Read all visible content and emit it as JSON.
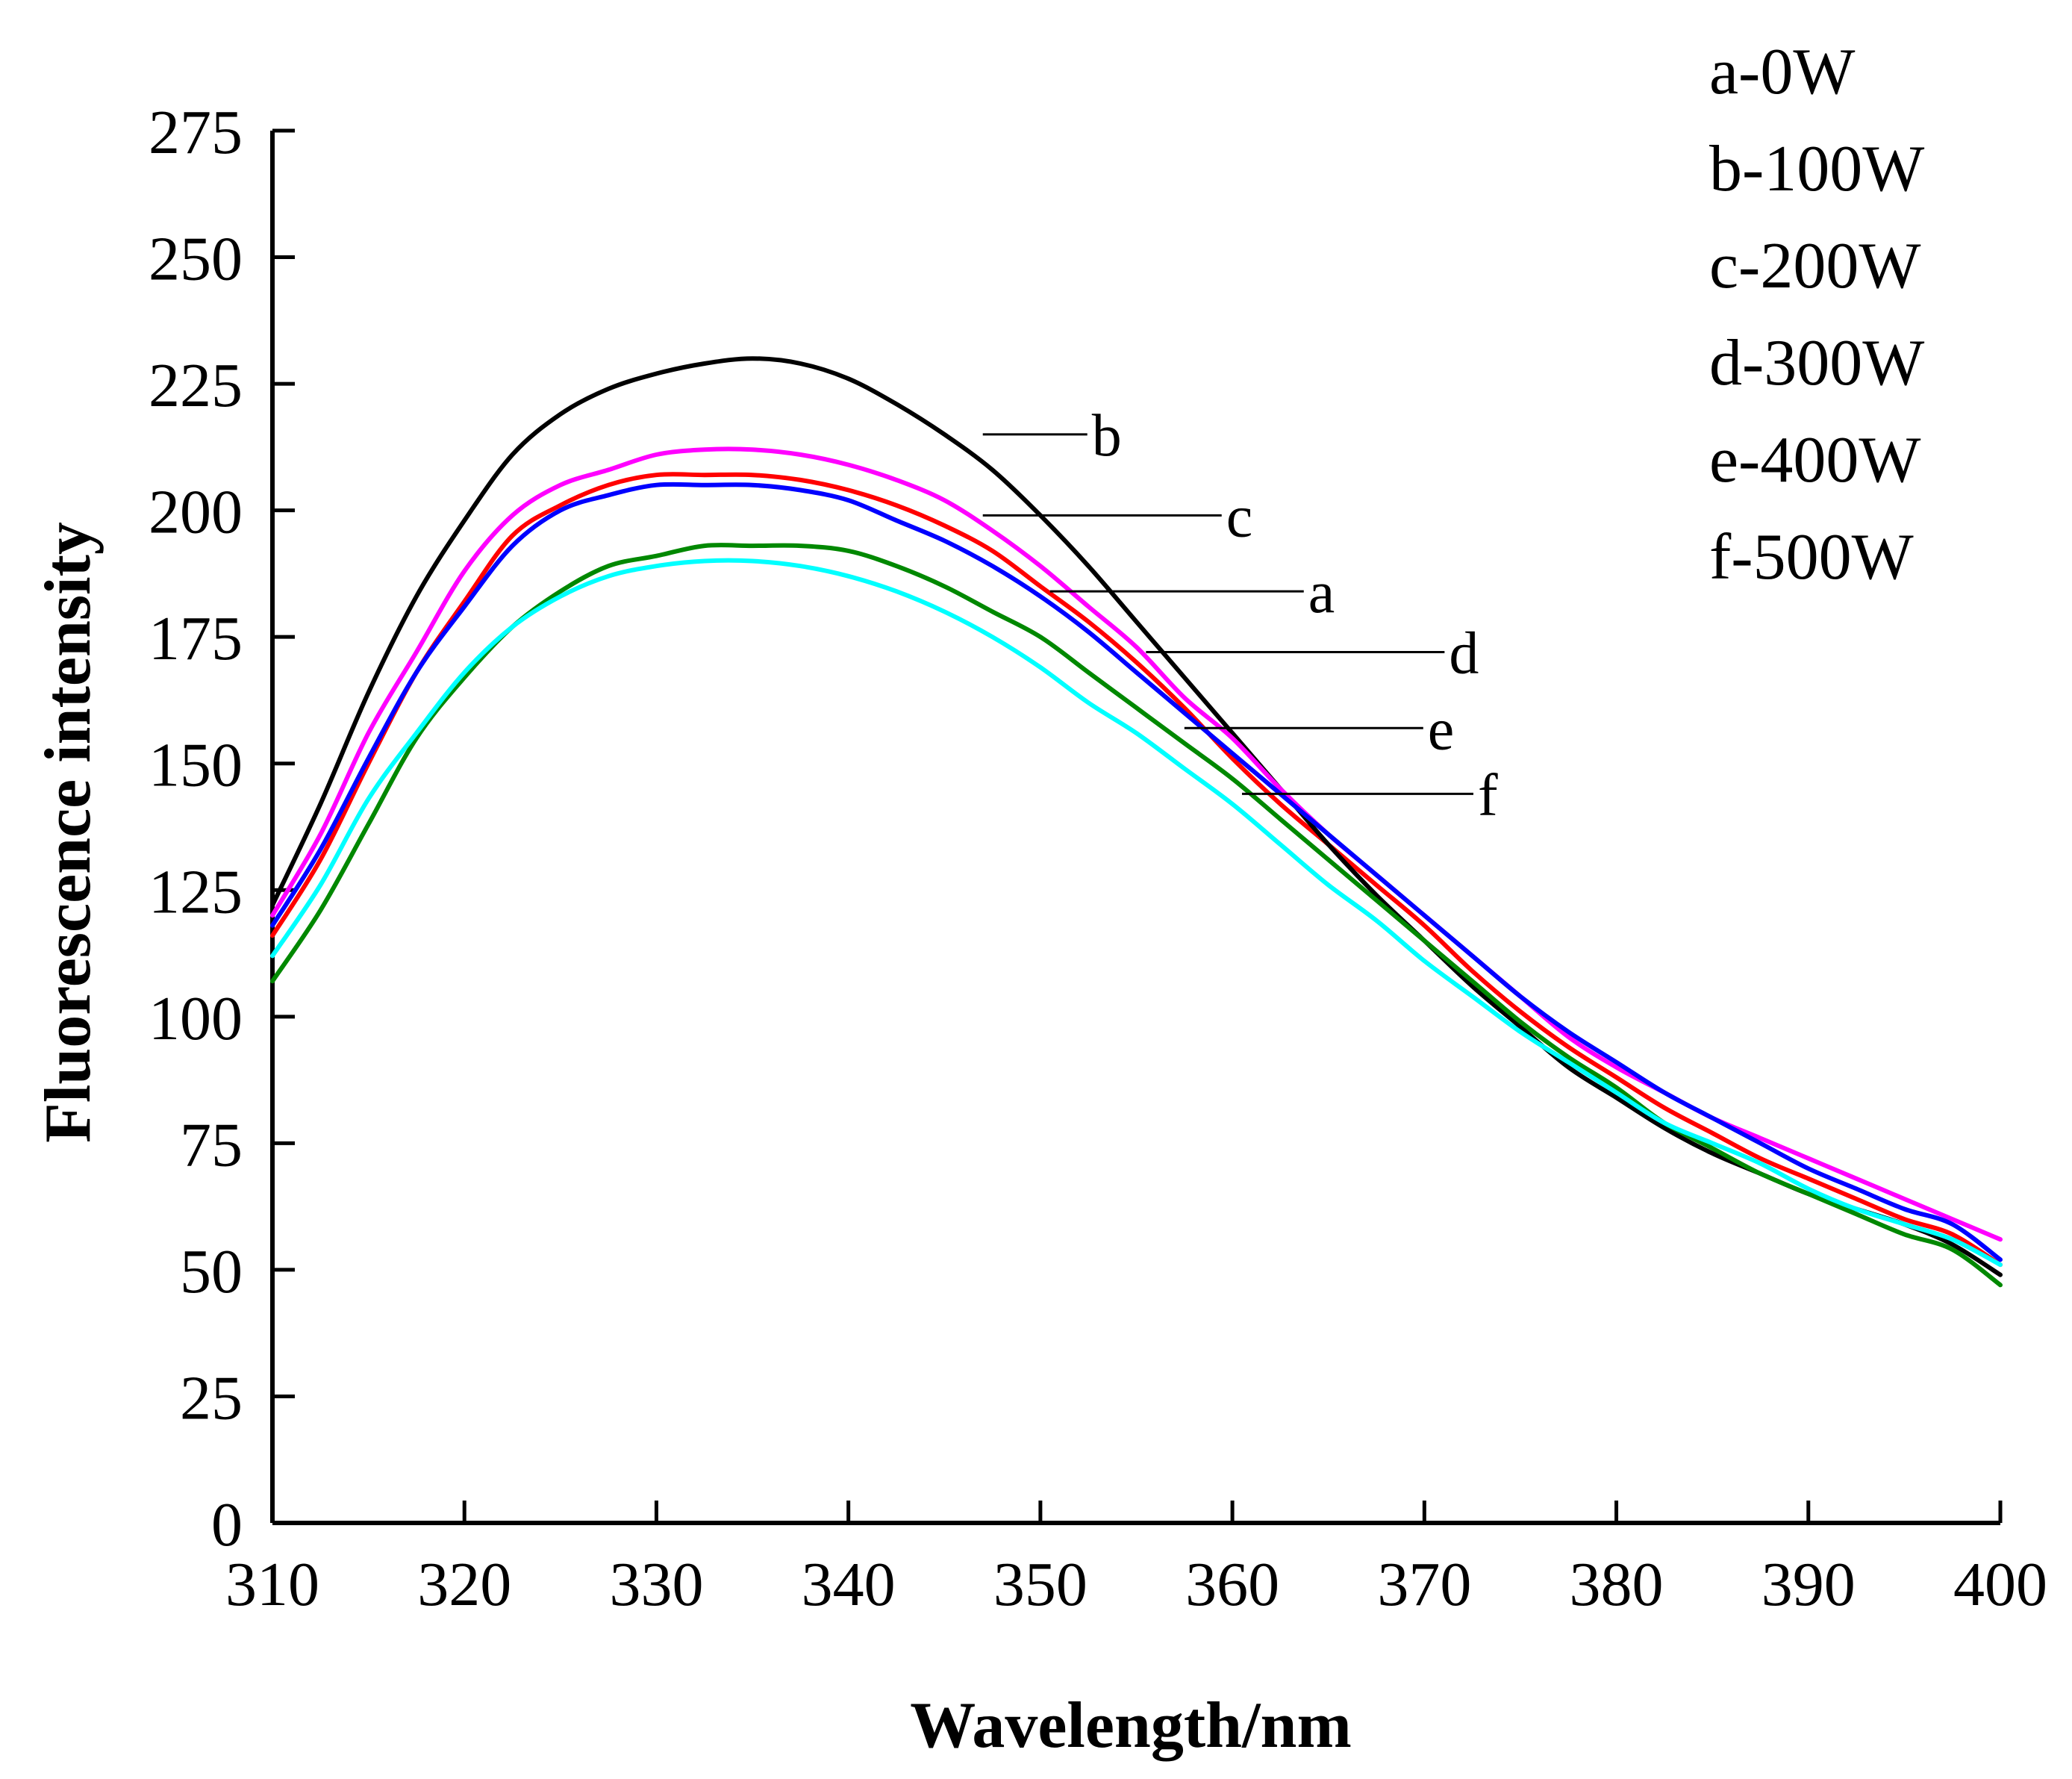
{
  "chart_data": {
    "type": "line",
    "title": "",
    "xlabel": "Wavelength/nm",
    "ylabel": "Fluorescence intensity",
    "xlim": [
      310,
      400
    ],
    "ylim": [
      0,
      275
    ],
    "xticks": [
      310,
      320,
      330,
      340,
      350,
      360,
      370,
      380,
      390,
      400
    ],
    "yticks": [
      0,
      25,
      50,
      75,
      100,
      125,
      150,
      175,
      200,
      225,
      250,
      275
    ],
    "grid": false,
    "legend": {
      "placement": "top-right",
      "entries": [
        "a-0W",
        "b-100W",
        "c-200W",
        "d-300W",
        "e-400W",
        "f-500W"
      ]
    },
    "x": [
      310,
      312.5,
      315,
      317.5,
      320,
      322.5,
      325,
      327.5,
      330,
      332.5,
      335,
      337.5,
      340,
      342.5,
      345,
      347.5,
      350,
      352.5,
      355,
      357.5,
      360,
      362.5,
      365,
      367.5,
      370,
      372.5,
      375,
      377.5,
      380,
      382.5,
      385,
      387.5,
      390,
      392.5,
      395,
      397.5,
      400
    ],
    "series": [
      {
        "name": "a-0W",
        "label": "a",
        "color": "#ff0000",
        "label_x": 350.5,
        "label_y": 184,
        "values": [
          116,
          131,
          150,
          168,
          182,
          195,
          201,
          205,
          207,
          207,
          207,
          206,
          204,
          201,
          197,
          192,
          185,
          178,
          170,
          161,
          151,
          142,
          134,
          126,
          118,
          109,
          101,
          94,
          88,
          82,
          77,
          72,
          68,
          64,
          60,
          57,
          51
        ]
      },
      {
        "name": "b-100W",
        "label": "b",
        "color": "#000000",
        "label_x": 347,
        "label_y": 215,
        "values": [
          122,
          142,
          164,
          183,
          198,
          211,
          219,
          224,
          227,
          229,
          230,
          229,
          226,
          221,
          215,
          208,
          199,
          189,
          178,
          167,
          156,
          145,
          134,
          124,
          115,
          106,
          98,
          90,
          84,
          78,
          73,
          69,
          65,
          62,
          59,
          55,
          49
        ]
      },
      {
        "name": "c-200W",
        "label": "c",
        "color": "#ff00ff",
        "label_x": 347,
        "label_y": 199,
        "values": [
          120,
          136,
          156,
          172,
          188,
          199,
          205,
          208,
          211,
          212,
          212,
          211,
          209,
          206,
          202,
          196,
          189,
          181,
          173,
          163,
          155,
          145,
          136,
          128,
          120,
          112,
          104,
          96,
          90,
          85,
          80,
          76,
          72,
          68,
          64,
          60,
          56
        ]
      },
      {
        "name": "d-300W",
        "label": "d",
        "color": "#0000ff",
        "label_x": 355.5,
        "label_y": 172,
        "values": [
          118,
          133,
          151,
          168,
          181,
          193,
          200,
          203,
          205,
          205,
          205,
          204,
          202,
          198,
          194,
          189,
          183,
          176,
          168,
          160,
          152,
          144,
          136,
          128,
          120,
          112,
          104,
          97,
          91,
          85,
          80,
          75,
          70,
          66,
          62,
          59,
          52
        ]
      },
      {
        "name": "e-400W",
        "label": "e",
        "color": "#008800",
        "label_x": 357.5,
        "label_y": 157,
        "values": [
          107,
          121,
          138,
          155,
          167,
          177,
          184,
          189,
          191,
          193,
          193,
          193,
          192,
          189,
          185,
          180,
          175,
          168,
          161,
          154,
          147,
          139,
          131,
          123,
          115,
          107,
          99,
          92,
          86,
          79,
          74,
          69,
          65,
          61,
          57,
          54,
          47
        ]
      },
      {
        "name": "f-500W",
        "label": "f",
        "color": "#00ffff",
        "label_x": 360.5,
        "label_y": 144,
        "values": [
          112,
          126,
          143,
          156,
          168,
          177,
          183,
          187,
          189,
          190,
          190,
          189,
          187,
          184,
          180,
          175,
          169,
          162,
          156,
          149,
          142,
          134,
          126,
          119,
          111,
          104,
          97,
          91,
          85,
          79,
          75,
          71,
          66,
          62,
          59,
          56,
          51
        ]
      }
    ]
  }
}
